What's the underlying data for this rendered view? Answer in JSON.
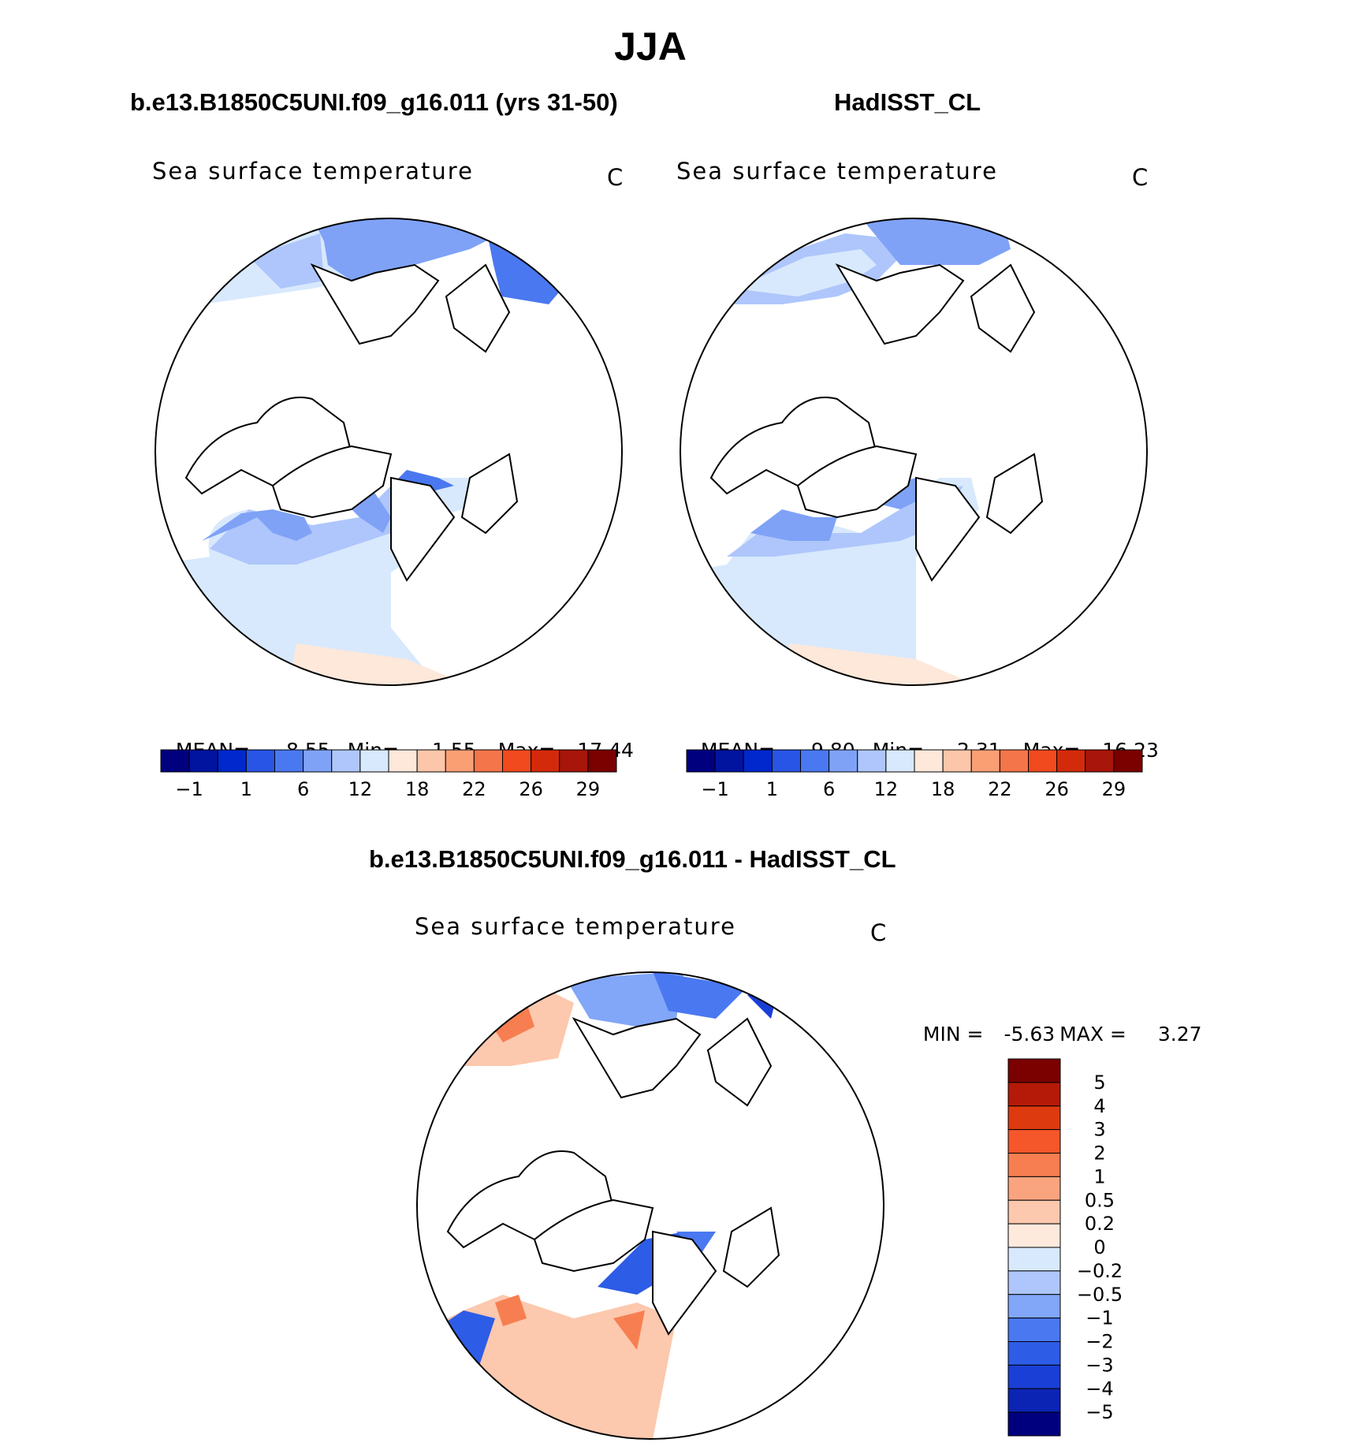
{
  "title": "JJA",
  "panels": [
    {
      "title": "b.e13.B1850C5UNI.f09_g16.011 (yrs 31-50)",
      "variable": "Sea surface temperature",
      "units": "C",
      "stats": {
        "mean_label": "MEAN=",
        "mean": "8.55",
        "min_label": "Min=",
        "min": "1.55",
        "max_label": "Max=",
        "max": "17.44"
      }
    },
    {
      "title": "HadISST_CL",
      "variable": "Sea surface temperature",
      "units": "C",
      "stats": {
        "mean_label": "MEAN=",
        "mean": "9.80",
        "min_label": "Min=",
        "min": "2.31",
        "max_label": "Max=",
        "max": "16.23"
      }
    },
    {
      "title": "b.e13.B1850C5UNI.f09_g16.011 - HadISST_CL",
      "variable": "Sea surface temperature",
      "units": "C",
      "stats": {
        "min_label": "MIN =",
        "min": "-5.63",
        "max_label": "MAX =",
        "max": "3.27"
      }
    }
  ],
  "chart_data": [
    {
      "type": "heatmap",
      "projection": "north-polar-stereographic",
      "title": "b.e13.B1850C5UNI.f09_g16.011 (yrs 31-50)",
      "variable": "Sea surface temperature",
      "units": "C",
      "mean": 8.55,
      "min": 1.55,
      "max": 17.44,
      "colorbar_orientation": "horizontal",
      "tick_labels": [
        "-1",
        "1",
        "6",
        "12",
        "18",
        "22",
        "26",
        "29"
      ],
      "colors": [
        "#00007f",
        "#0014a0",
        "#0028cc",
        "#2855e6",
        "#4a78f0",
        "#7fa2f7",
        "#aec6fb",
        "#d8e9fd",
        "#fde8da",
        "#fcc6aa",
        "#fa9e74",
        "#f5754a",
        "#f04a1e",
        "#d42a0c",
        "#a8150a",
        "#7b0000"
      ]
    },
    {
      "type": "heatmap",
      "projection": "north-polar-stereographic",
      "title": "HadISST_CL",
      "variable": "Sea surface temperature",
      "units": "C",
      "mean": 9.8,
      "min": 2.31,
      "max": 16.23,
      "colorbar_orientation": "horizontal",
      "tick_labels": [
        "-1",
        "1",
        "6",
        "12",
        "18",
        "22",
        "26",
        "29"
      ],
      "colors": [
        "#00007f",
        "#0014a0",
        "#0028cc",
        "#2855e6",
        "#4a78f0",
        "#7fa2f7",
        "#aec6fb",
        "#d8e9fd",
        "#fde8da",
        "#fcc6aa",
        "#fa9e74",
        "#f5754a",
        "#f04a1e",
        "#d42a0c",
        "#a8150a",
        "#7b0000"
      ]
    },
    {
      "type": "heatmap",
      "projection": "north-polar-stereographic",
      "title": "b.e13.B1850C5UNI.f09_g16.011 - HadISST_CL",
      "variable": "Sea surface temperature",
      "units": "C",
      "min": -5.63,
      "max": 3.27,
      "colorbar_orientation": "vertical",
      "tick_labels": [
        "5",
        "4",
        "3",
        "2",
        "1",
        "0.5",
        "0.2",
        "0",
        "-0.2",
        "-0.5",
        "-1",
        "-2",
        "-3",
        "-4",
        "-5"
      ],
      "colors": [
        "#7b0000",
        "#b51a08",
        "#dd3a10",
        "#f5562a",
        "#f77e50",
        "#f9a47f",
        "#fcc8ae",
        "#fdeadd",
        "#d8e9fd",
        "#aec6fb",
        "#82a6f8",
        "#4a78f0",
        "#2d5ce6",
        "#1a3fd6",
        "#0c24b4",
        "#00007f"
      ]
    }
  ]
}
